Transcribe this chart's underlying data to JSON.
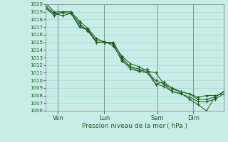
{
  "xlabel": "Pression niveau de la mer ( hPa )",
  "bg_color": "#c8ece8",
  "plot_bg_color": "#c8ece8",
  "grid_color": "#aad8d4",
  "line_color": "#1a5c1a",
  "ylim": [
    1006,
    1020
  ],
  "yticks": [
    1006,
    1007,
    1008,
    1009,
    1010,
    1011,
    1012,
    1013,
    1014,
    1015,
    1016,
    1017,
    1018,
    1019,
    1020
  ],
  "xtick_labels": [
    "Ven",
    "Lun",
    "Sam",
    "Dim"
  ],
  "xtick_positions": [
    0.07,
    0.33,
    0.63,
    0.83
  ],
  "vline_color": "#7aaa99",
  "series": [
    [
      1019.8,
      1018.8,
      1018.5,
      1018.8,
      1017.2,
      1016.5,
      1015.0,
      1015.0,
      1014.8,
      1013.2,
      1012.2,
      1011.8,
      1011.2,
      1011.0,
      1009.5,
      1009.0,
      1008.5,
      1008.2,
      1007.8,
      1008.0,
      1008.0,
      1008.2
    ],
    [
      1019.5,
      1018.5,
      1019.0,
      1019.0,
      1017.5,
      1016.5,
      1015.0,
      1015.0,
      1014.8,
      1012.5,
      1011.8,
      1011.5,
      1011.0,
      1009.5,
      1009.2,
      1008.5,
      1008.3,
      1007.5,
      1006.8,
      1006.0,
      1007.8,
      1008.5
    ],
    [
      1019.5,
      1018.8,
      1018.9,
      1018.8,
      1017.0,
      1016.7,
      1015.2,
      1015.1,
      1014.5,
      1012.8,
      1011.5,
      1011.2,
      1011.5,
      1009.5,
      1009.8,
      1008.8,
      1008.5,
      1008.2,
      1007.5,
      1007.5,
      1007.8,
      1008.5
    ],
    [
      1020.2,
      1019.0,
      1019.0,
      1019.0,
      1017.8,
      1016.8,
      1015.5,
      1015.0,
      1015.0,
      1013.0,
      1011.8,
      1011.2,
      1011.0,
      1010.0,
      1009.5,
      1008.5,
      1008.2,
      1007.8,
      1007.2,
      1007.2,
      1007.5,
      1008.2
    ]
  ],
  "n_points": 22
}
